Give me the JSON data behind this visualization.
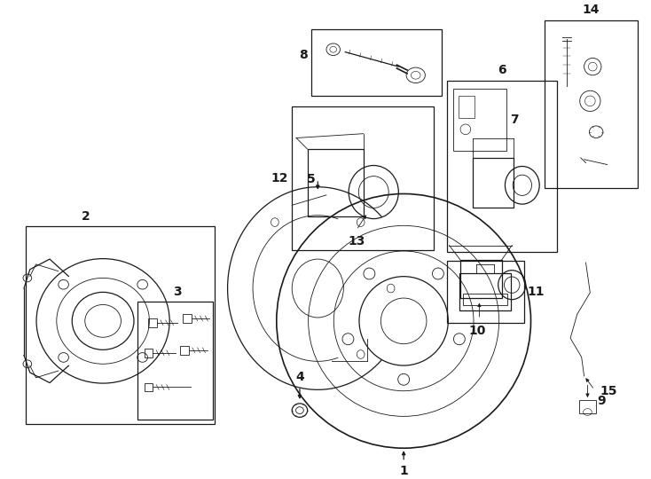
{
  "bg_color": "#ffffff",
  "line_color": "#1a1a1a",
  "label_fontsize": 10,
  "label_color": "#000000",
  "fig_width": 7.34,
  "fig_height": 5.4
}
